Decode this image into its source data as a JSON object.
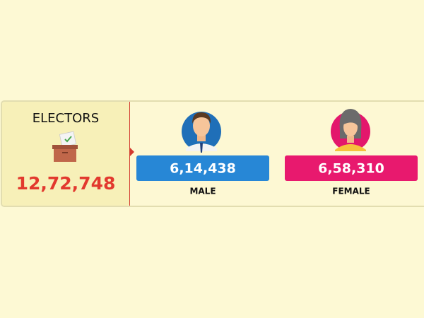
{
  "electors": {
    "title": "ELECTORS",
    "total": "12,72,748"
  },
  "male": {
    "value": "6,14,438",
    "label": "MALE"
  },
  "female": {
    "value": "6,58,310",
    "label": "FEMALE"
  }
}
